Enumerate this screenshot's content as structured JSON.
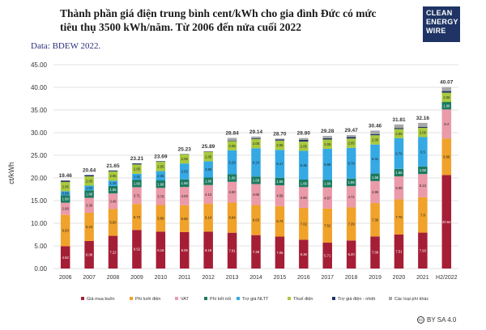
{
  "header": {
    "title_line1": "Thành phần giá điện trung bình cent/kWh cho gia đình Đức có mức",
    "title_line2": "tiêu thụ 3500 kWh/năm. Từ 2006 đến nửa cuối 2022",
    "source": "Data: BDEW 2022."
  },
  "logo": {
    "line1": "CLEAN",
    "line2": "ENERGY",
    "line3": "WIRE"
  },
  "license": {
    "text": "BY SA 4.0",
    "icon": "cc-icon"
  },
  "chart_data": {
    "type": "bar",
    "stacked": true,
    "ylabel": "ct/kWh",
    "ylim": [
      0,
      45
    ],
    "yticks": [
      "0.00",
      "5.00",
      "10.00",
      "15.00",
      "20.00",
      "25.00",
      "30.00",
      "35.00",
      "40.00",
      "45.00"
    ],
    "grid": true,
    "legend_position": "bottom",
    "categories": [
      "2006",
      "2007",
      "2008",
      "2009",
      "2010",
      "2011",
      "2012",
      "2013",
      "2014",
      "2015",
      "2016",
      "2017",
      "2018",
      "2019",
      "2020",
      "2021",
      "H2/2022"
    ],
    "totals": [
      "19.46",
      "20.64",
      "21.65",
      "23.21",
      "23.69",
      "25.23",
      "25.89",
      "28.84",
      "29.14",
      "28.70",
      "28.80",
      "29.28",
      "29.47",
      "30.46",
      "31.81",
      "32.16",
      "40.07"
    ],
    "series": [
      {
        "name": "Giá mua buôn",
        "color": "#a51e36",
        "values": [
          4.92,
          6.08,
          7.22,
          8.52,
          8.16,
          8.05,
          8.16,
          7.91,
          7.38,
          7.05,
          6.36,
          5.71,
          6.2,
          7.09,
          7.51,
          7.93,
          20.64
        ],
        "labels": [
          "4.92",
          "6.08",
          "7.22",
          "8.52",
          "8.16",
          "8.05",
          "8.16",
          "7.91",
          "7.38",
          "7.05",
          "6.36",
          "5.71",
          "6.20",
          "7.09",
          "7.51",
          "7.93",
          "20.64"
        ]
      },
      {
        "name": "Phí lưới điện",
        "color": "#f0a22a",
        "values": [
          6.93,
          6.24,
          5.9,
          5.73,
          5.86,
          5.92,
          6.14,
          6.64,
          6.63,
          6.74,
          7.02,
          7.52,
          7.29,
          7.36,
          7.75,
          7.8,
          8.08
        ],
        "labels": [
          "6.93",
          "6.24",
          "5.90",
          "5.73",
          "5.86",
          "5.92",
          "6.14",
          "6.64",
          "6.63",
          "6.74",
          "7.02",
          "7.52",
          "7.29",
          "7.36",
          "7.75",
          "7.8",
          "8.08"
        ]
      },
      {
        "name": "VAT",
        "color": "#ea9aa8",
        "values": [
          2.68,
          3.3,
          3.46,
          3.71,
          3.78,
          4.03,
          4.13,
          4.6,
          4.65,
          4.58,
          4.6,
          4.67,
          4.71,
          4.86,
          5.08,
          5.13,
          6.4
        ],
        "labels": [
          "2.68",
          "3.30",
          "3.46",
          "3.71",
          "3.78",
          "4.03",
          "4.13",
          "4.60",
          "4.65",
          "4.58",
          "4.60",
          "4.67",
          "4.71",
          "4.86",
          "5.08",
          "5.13",
          "6.4"
        ]
      },
      {
        "name": "Phí kết nối",
        "color": "#1b7a5e",
        "values": [
          1.66,
          1.66,
          1.66,
          1.66,
          1.66,
          1.66,
          1.66,
          1.66,
          1.66,
          1.66,
          1.66,
          1.66,
          1.66,
          1.66,
          1.66,
          1.66,
          1.66
        ],
        "labels": [
          "1.66",
          "1.66",
          "1.66",
          "1.66",
          "1.66",
          "1.66",
          "1.66",
          "1.66",
          "1.66",
          "1.66",
          "1.66",
          "1.66",
          "1.66",
          "1.66",
          "1.66",
          "1.66",
          "1.66"
        ]
      },
      {
        "name": "Trợ giá NLTT",
        "color": "#35a9e4",
        "values": [
          0.88,
          1.02,
          1.16,
          1.31,
          2.05,
          3.53,
          3.59,
          5.28,
          6.24,
          6.17,
          6.35,
          6.88,
          6.79,
          6.41,
          6.76,
          6.5,
          0
        ],
        "labels": [
          "0.88",
          "1.02",
          "1.16",
          "1.31",
          "2.05",
          "3.53",
          "3.59",
          "5.28",
          "6.24",
          "6.17",
          "6.35",
          "6.88",
          "6.79",
          "6.41",
          "6.76",
          "6.5",
          ""
        ]
      },
      {
        "name": "Thuế điện",
        "color": "#a9c93e",
        "values": [
          2.05,
          2.05,
          2.05,
          2.05,
          2.05,
          2.05,
          2.05,
          2.05,
          2.05,
          2.05,
          2.05,
          2.05,
          2.05,
          2.05,
          2.05,
          2.05,
          2.05
        ],
        "labels": [
          "2.05",
          "2.05",
          "2.05",
          "2.05",
          "2.05",
          "2.05",
          "2.05",
          "2.05",
          "2.05",
          "2.05",
          "2.05",
          "2.05",
          "2.05",
          "2.05",
          "2.05",
          "2.05",
          "2.05"
        ]
      },
      {
        "name": "Trợ giá điện - nhiệt",
        "color": "#1f3464",
        "values": [
          0.31,
          0.29,
          0.2,
          0.23,
          0.13,
          0.03,
          0.06,
          0.13,
          0.18,
          0.25,
          0.35,
          0.28,
          0.35,
          0.26,
          0.23,
          0.18,
          0.35
        ],
        "labels": [
          "",
          "",
          "",
          "",
          "",
          "",
          "",
          "",
          "",
          "",
          "",
          "",
          "",
          "",
          "",
          "",
          ""
        ]
      },
      {
        "name": "Các loại phí khác",
        "color": "#a8a8a8",
        "values": [
          0.03,
          0,
          0,
          0,
          0,
          -0.04,
          0.1,
          0.57,
          0.35,
          0.2,
          0.41,
          0.51,
          0.42,
          0.77,
          0.77,
          0.91,
          0.89
        ],
        "labels": [
          "",
          "",
          "",
          "",
          "",
          "",
          "",
          "",
          "",
          "",
          "",
          "",
          "",
          "",
          "",
          "",
          ""
        ]
      }
    ]
  }
}
